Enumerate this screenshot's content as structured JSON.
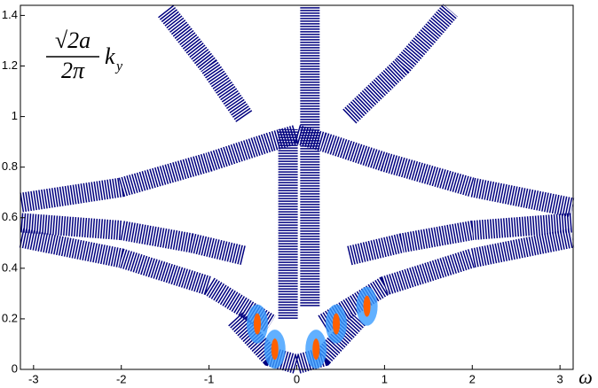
{
  "chart_data": {
    "type": "contour",
    "xlabel": "ω",
    "ylabel": {
      "numerator": "√2a",
      "denominator": "2π",
      "symbol": "k",
      "subscript": "y"
    },
    "xlim": [
      -3.15,
      3.15
    ],
    "ylim": [
      0,
      1.44
    ],
    "xticks": [
      -3,
      -2,
      -1,
      0,
      1,
      2,
      3
    ],
    "yticks": [
      0,
      0.2,
      0.4,
      0.6,
      0.8,
      1,
      1.2,
      1.4
    ],
    "series": [
      {
        "color": "#00007f",
        "x": [
          -3.14,
          -2,
          -1,
          -0.3,
          0,
          0.3,
          1,
          2,
          3.14
        ],
        "values": [
          0.66,
          0.72,
          0.82,
          0.9,
          0.93,
          0.9,
          0.82,
          0.72,
          0.64
        ]
      },
      {
        "color": "#00007f",
        "x": [
          -3.14,
          -2,
          -1.2,
          -0.6
        ],
        "values": [
          0.58,
          0.55,
          0.5,
          0.45
        ]
      },
      {
        "color": "#00007f",
        "x": [
          0.6,
          1.2,
          2,
          3.14
        ],
        "values": [
          0.45,
          0.5,
          0.55,
          0.58
        ]
      },
      {
        "color": "#00007f",
        "x": [
          -3.14,
          -2,
          -1,
          -0.3
        ],
        "values": [
          0.52,
          0.44,
          0.33,
          0.18
        ]
      },
      {
        "color": "#00007f",
        "x": [
          0.3,
          1,
          2,
          3.14
        ],
        "values": [
          0.18,
          0.33,
          0.44,
          0.52
        ]
      },
      {
        "color": "#00007f",
        "x": [
          -0.6,
          -1,
          -1.5
        ],
        "values": [
          1.0,
          1.2,
          1.42
        ]
      },
      {
        "color": "#00007f",
        "x": [
          0.6,
          1.2,
          1.75
        ],
        "values": [
          1.0,
          1.2,
          1.42
        ]
      },
      {
        "color": "#00007f",
        "x": [
          -0.1,
          -0.1
        ],
        "values": [
          0.2,
          0.95
        ]
      },
      {
        "color": "#00007f",
        "x": [
          0.15,
          0.15
        ],
        "values": [
          0.25,
          1.44
        ]
      },
      {
        "color": "#00007f",
        "x": [
          -0.7,
          -0.3,
          0,
          0.3,
          0.7
        ],
        "values": [
          0.2,
          0.05,
          0.02,
          0.05,
          0.2
        ]
      }
    ],
    "peaks": {
      "color": "#ff6000",
      "x": [
        -0.25,
        0.22,
        -0.45,
        0.45,
        0.8
      ],
      "values": [
        0.08,
        0.08,
        0.18,
        0.18,
        0.25
      ]
    }
  }
}
